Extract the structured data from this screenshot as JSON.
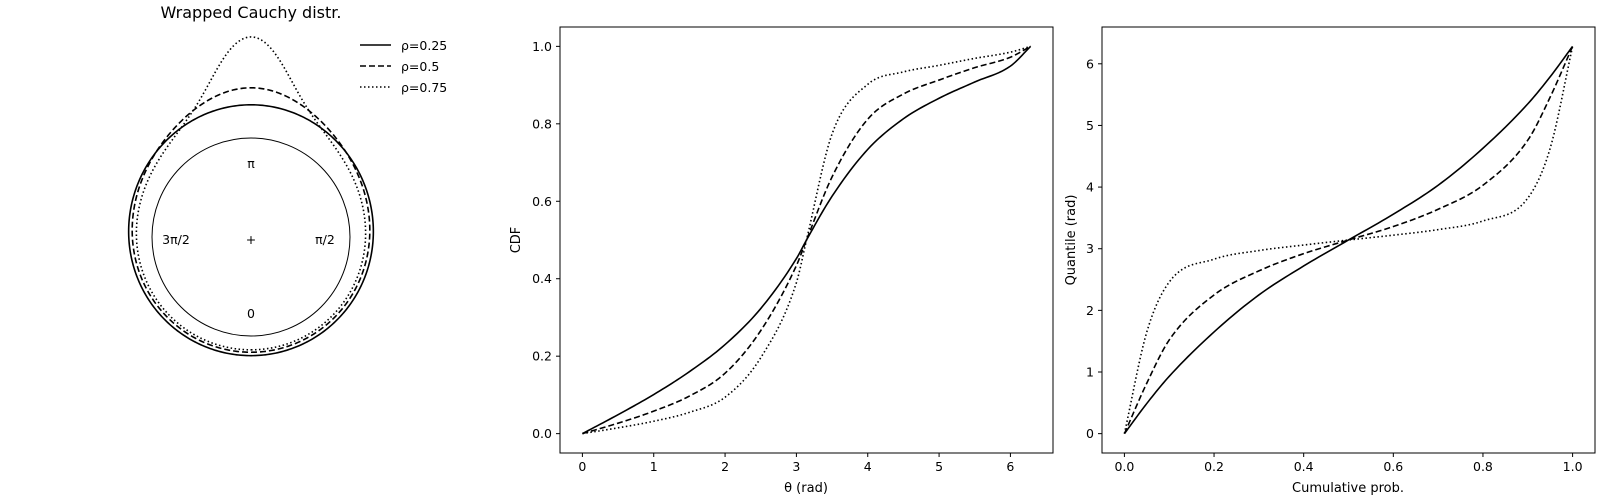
{
  "figure": {
    "panels": [
      "wrapped-cauchy-circular-plot",
      "cdf-plot",
      "quantile-plot"
    ]
  },
  "legend": {
    "entries": [
      {
        "label": "ρ=0.25",
        "style": "solid"
      },
      {
        "label": "ρ=0.5",
        "style": "dashed"
      },
      {
        "label": "ρ=0.75",
        "style": "dotted"
      }
    ],
    "placement": "top-right of circular panel"
  },
  "circular": {
    "title": "Wrapped Cauchy distr.",
    "labels": {
      "top": "π",
      "right": "π/2",
      "bottom": "0",
      "left": "3π/2",
      "center": "+"
    }
  },
  "chart_data": [
    {
      "type": "line",
      "title": "Wrapped Cauchy distr.",
      "kind": "polar density (circular)",
      "mu": 3.141593,
      "series": [
        {
          "name": "ρ=0.25",
          "rho": 0.25,
          "style": "solid"
        },
        {
          "name": "ρ=0.5",
          "rho": 0.5,
          "style": "dashed"
        },
        {
          "name": "ρ=0.75",
          "rho": 0.75,
          "style": "dotted"
        }
      ],
      "angle_labels": [
        "0",
        "π/2",
        "π",
        "3π/2"
      ]
    },
    {
      "type": "line",
      "xlabel": "θ (rad)",
      "ylabel": "CDF",
      "xlim": [
        -0.314,
        6.597
      ],
      "ylim": [
        -0.05,
        1.05
      ],
      "xticks": [
        0,
        1,
        2,
        3,
        4,
        5,
        6
      ],
      "yticks": [
        0.0,
        0.2,
        0.4,
        0.6,
        0.8,
        1.0
      ],
      "xtick_labels": [
        "0",
        "1",
        "2",
        "3",
        "4",
        "5",
        "6"
      ],
      "ytick_labels": [
        "0.0",
        "0.2",
        "0.4",
        "0.6",
        "0.8",
        "1.0"
      ],
      "grid": false,
      "series": [
        {
          "name": "ρ=0.25",
          "style": "solid",
          "x": [
            0,
            0.5,
            1,
            1.5,
            2,
            2.5,
            3,
            3.1416,
            3.5,
            4,
            4.5,
            5,
            5.5,
            6,
            6.2832
          ],
          "y": [
            0,
            0.049,
            0.101,
            0.16,
            0.23,
            0.323,
            0.452,
            0.5,
            0.613,
            0.734,
            0.813,
            0.866,
            0.908,
            0.949,
            1.0
          ]
        },
        {
          "name": "ρ=0.5",
          "style": "dashed",
          "x": [
            0,
            0.5,
            1,
            1.5,
            2,
            2.5,
            3,
            3.1416,
            3.5,
            4,
            4.5,
            5,
            5.5,
            6,
            6.2832
          ],
          "y": [
            0,
            0.027,
            0.058,
            0.097,
            0.156,
            0.266,
            0.434,
            0.5,
            0.663,
            0.812,
            0.877,
            0.913,
            0.945,
            0.972,
            1.0
          ]
        },
        {
          "name": "ρ=0.75",
          "style": "dotted",
          "x": [
            0,
            0.5,
            1,
            1.5,
            2,
            2.5,
            3,
            3.1416,
            3.5,
            4,
            4.5,
            5,
            5.5,
            6,
            6.2832
          ],
          "y": [
            0,
            0.015,
            0.032,
            0.055,
            0.094,
            0.196,
            0.39,
            0.5,
            0.774,
            0.902,
            0.934,
            0.951,
            0.969,
            0.985,
            1.0
          ]
        }
      ]
    },
    {
      "type": "line",
      "xlabel": "Cumulative prob.",
      "ylabel": "Quantile (rad)",
      "xlim": [
        -0.05,
        1.05
      ],
      "ylim": [
        -0.314,
        6.597
      ],
      "xticks": [
        0.0,
        0.2,
        0.4,
        0.6,
        0.8,
        1.0
      ],
      "yticks": [
        0,
        1,
        2,
        3,
        4,
        5,
        6
      ],
      "xtick_labels": [
        "0.0",
        "0.2",
        "0.4",
        "0.6",
        "0.8",
        "1.0"
      ],
      "ytick_labels": [
        "0",
        "1",
        "2",
        "3",
        "4",
        "5",
        "6"
      ],
      "grid": false,
      "series": [
        {
          "name": "ρ=0.25",
          "style": "solid",
          "x": [
            0,
            0.05,
            0.1,
            0.2,
            0.3,
            0.4,
            0.5,
            0.6,
            0.7,
            0.8,
            0.9,
            0.95,
            1.0
          ],
          "y": [
            0,
            0.49,
            0.93,
            1.65,
            2.25,
            2.72,
            3.1416,
            3.56,
            4.03,
            4.63,
            5.35,
            5.79,
            6.2832
          ]
        },
        {
          "name": "ρ=0.5",
          "style": "dashed",
          "x": [
            0,
            0.05,
            0.1,
            0.2,
            0.3,
            0.4,
            0.5,
            0.6,
            0.7,
            0.8,
            0.9,
            0.95,
            1.0
          ],
          "y": [
            0,
            0.82,
            1.52,
            2.25,
            2.64,
            2.92,
            3.1416,
            3.36,
            3.64,
            4.03,
            4.76,
            5.46,
            6.2832
          ]
        },
        {
          "name": "ρ=0.75",
          "style": "dotted",
          "x": [
            0,
            0.05,
            0.1,
            0.2,
            0.3,
            0.4,
            0.5,
            0.6,
            0.7,
            0.8,
            0.9,
            0.95,
            1.0
          ],
          "y": [
            0,
            1.65,
            2.46,
            2.83,
            2.97,
            3.06,
            3.1416,
            3.22,
            3.31,
            3.45,
            3.82,
            4.63,
            6.2832
          ]
        }
      ]
    }
  ]
}
